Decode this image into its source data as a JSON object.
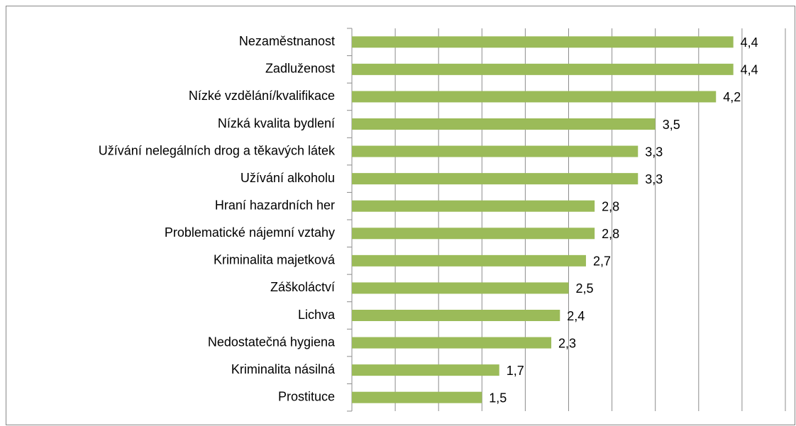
{
  "chart_data": {
    "type": "bar",
    "orientation": "horizontal",
    "categories": [
      "Nezaměstnanost",
      "Zadluženost",
      "Nízké vzdělání/kvalifikace",
      "Nízká kvalita bydlení",
      "Užívání nelegálních drog a těkavých látek",
      "Užívání alkoholu",
      "Hraní hazardních her",
      "Problematické nájemní vztahy",
      "Kriminalita majetková",
      "Záškoláctví",
      "Lichva",
      "Nedostatečná hygiena",
      "Kriminalita násilná",
      "Prostituce"
    ],
    "values": [
      4.4,
      4.4,
      4.2,
      3.5,
      3.3,
      3.3,
      2.8,
      2.8,
      2.7,
      2.5,
      2.4,
      2.3,
      1.7,
      1.5
    ],
    "value_labels": [
      "4,4",
      "4,4",
      "4,2",
      "3,5",
      "3,3",
      "3,3",
      "2,8",
      "2,8",
      "2,7",
      "2,5",
      "2,4",
      "2,3",
      "1,7",
      "1,5"
    ],
    "color": "#9bbb59",
    "xlim": [
      0,
      5
    ],
    "xticks": [
      0,
      0.5,
      1,
      1.5,
      2,
      2.5,
      3,
      3.5,
      4,
      4.5,
      5
    ],
    "grid": true
  }
}
